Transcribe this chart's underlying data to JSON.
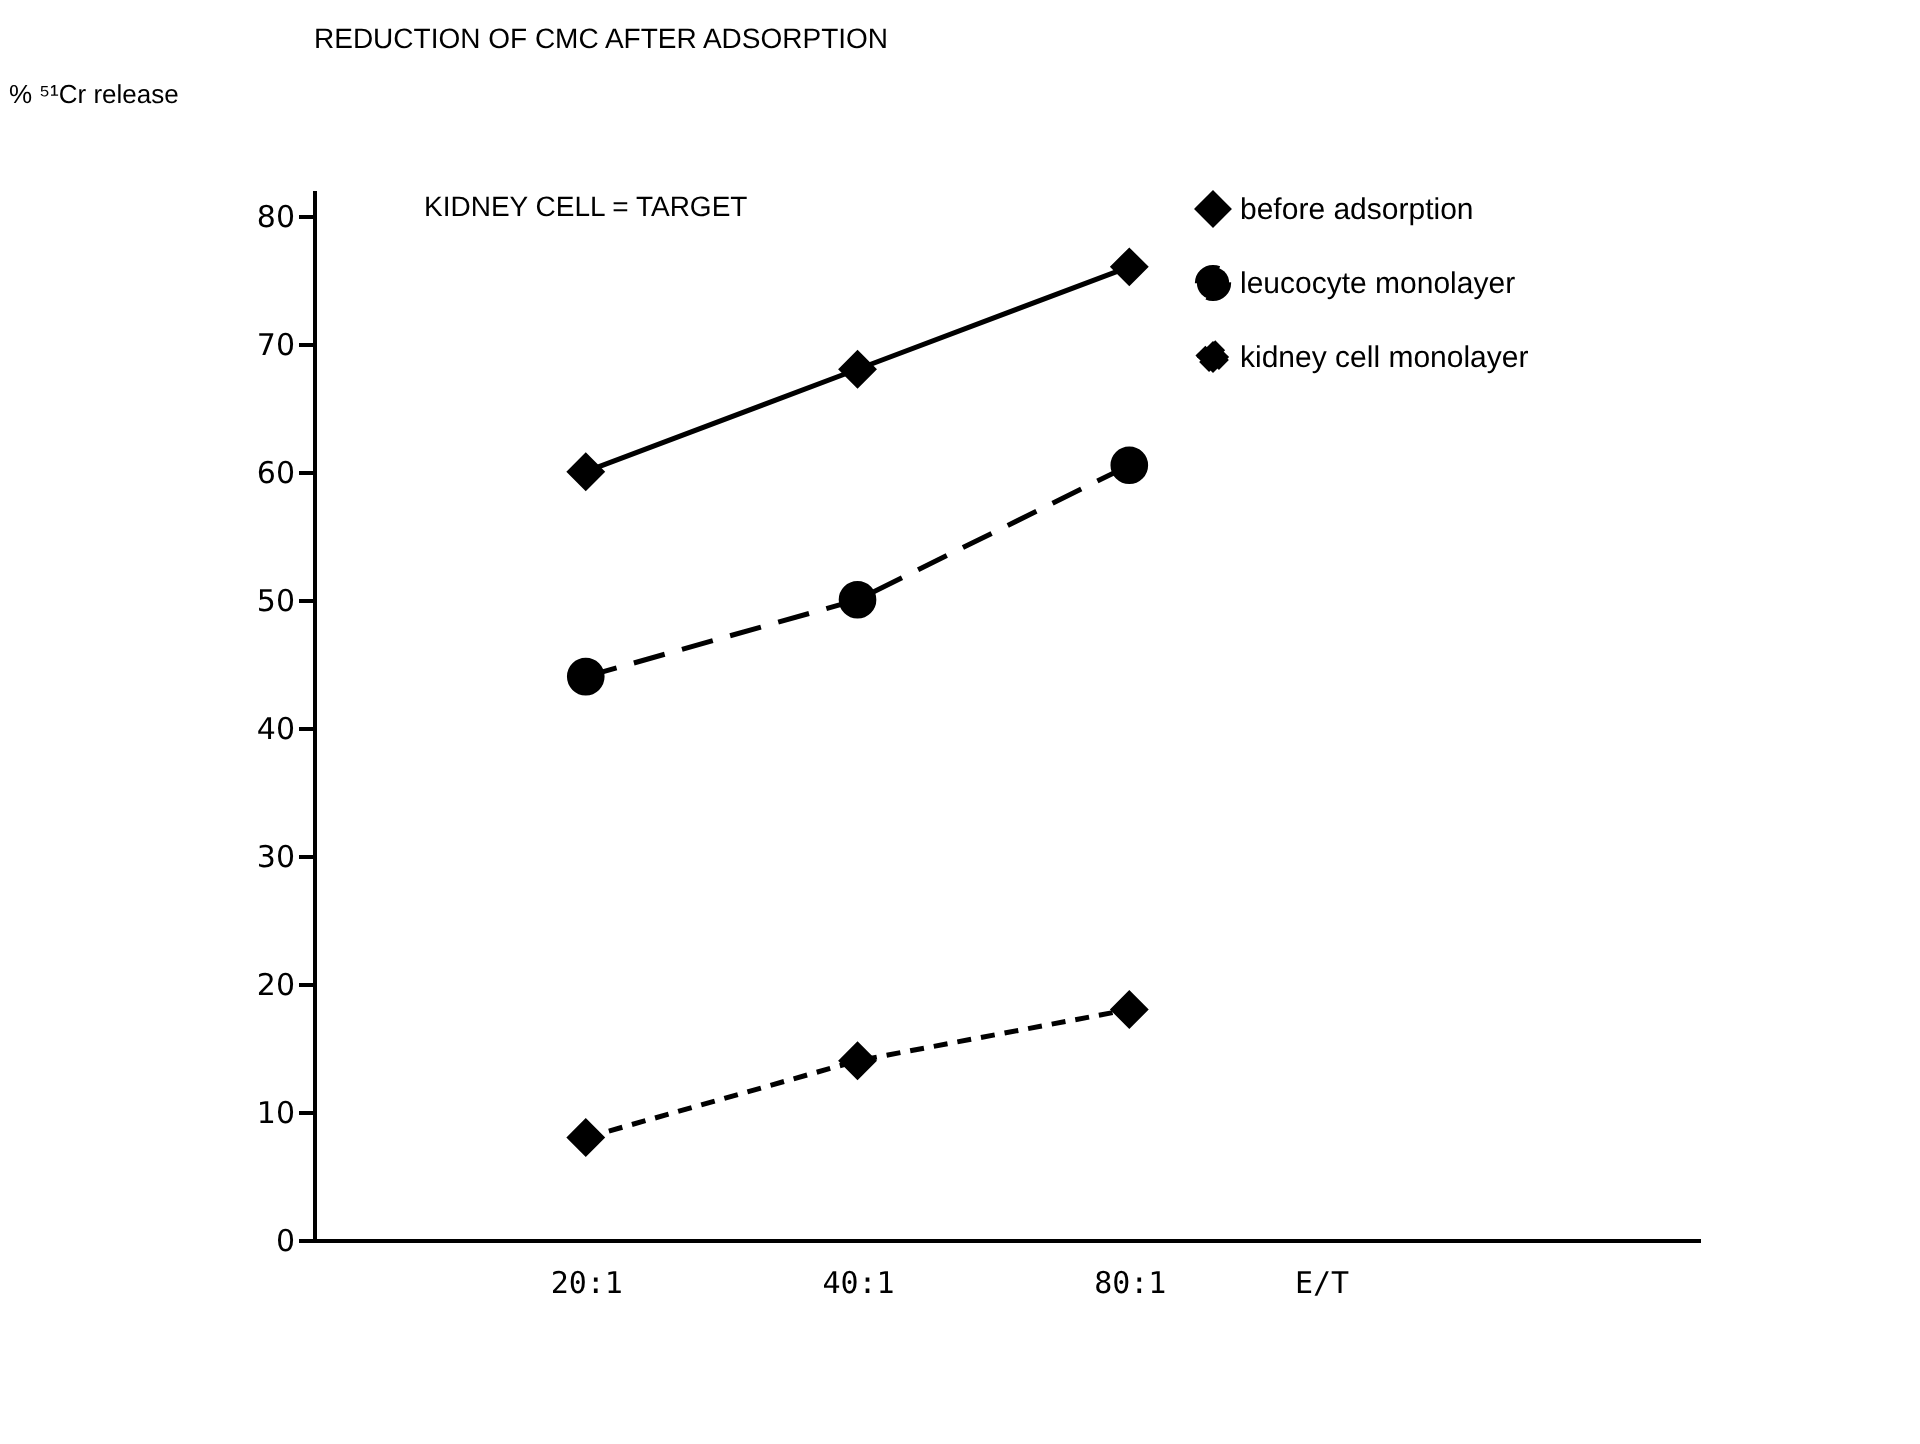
{
  "chart_data": {
    "type": "line",
    "title": "REDUCTION OF CMC AFTER ADSORPTION",
    "xlabel": "E/T",
    "ylabel": "% ⁵¹Cr release",
    "annotations": [
      "KIDNEY CELL = TARGET"
    ],
    "categories": [
      "20:1",
      "40:1",
      "80:1"
    ],
    "series": [
      {
        "name": "before adsorption",
        "color": "#000000",
        "values": [
          60,
          68,
          76
        ],
        "marker": "diamond",
        "line_style": "solid"
      },
      {
        "name": "leucocyte monolayer",
        "color": "#000000",
        "values": [
          44,
          50,
          60.5
        ],
        "marker": "circle",
        "line_style": "dashed"
      },
      {
        "name": "kidney cell monolayer",
        "color": "#000000",
        "values": [
          8,
          14,
          18
        ],
        "marker": "diamond",
        "line_style": "dotted"
      }
    ],
    "ylim": [
      0,
      82
    ],
    "yticks": [
      0,
      10,
      20,
      30,
      40,
      50,
      60,
      70,
      80
    ],
    "legend": "top right"
  }
}
